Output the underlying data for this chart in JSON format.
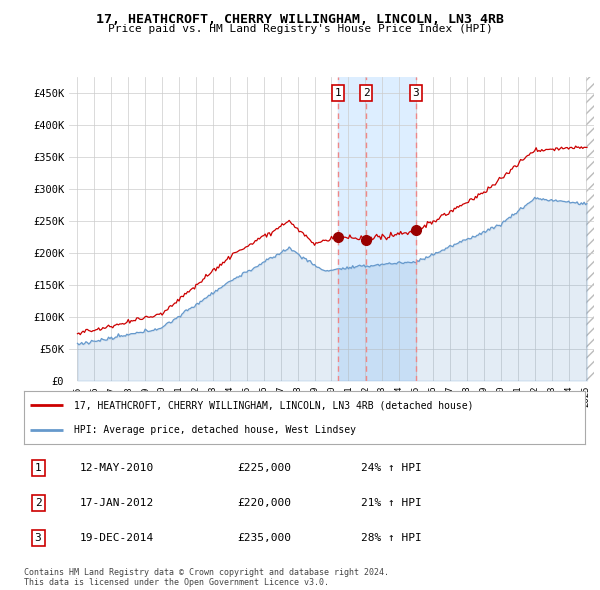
{
  "title": "17, HEATHCROFT, CHERRY WILLINGHAM, LINCOLN, LN3 4RB",
  "subtitle": "Price paid vs. HM Land Registry's House Price Index (HPI)",
  "legend_red": "17, HEATHCROFT, CHERRY WILLINGHAM, LINCOLN, LN3 4RB (detached house)",
  "legend_blue": "HPI: Average price, detached house, West Lindsey",
  "transactions": [
    {
      "num": 1,
      "date": "12-MAY-2010",
      "price": "£225,000",
      "hpi": "24% ↑ HPI",
      "year": 2010.37
    },
    {
      "num": 2,
      "date": "17-JAN-2012",
      "price": "£220,000",
      "hpi": "21% ↑ HPI",
      "year": 2012.05
    },
    {
      "num": 3,
      "date": "19-DEC-2014",
      "price": "£235,000",
      "hpi": "28% ↑ HPI",
      "year": 2014.97
    }
  ],
  "transaction_prices": [
    225000,
    220000,
    235000
  ],
  "footer": "Contains HM Land Registry data © Crown copyright and database right 2024.\nThis data is licensed under the Open Government Licence v3.0.",
  "ylim": [
    0,
    475000
  ],
  "yticks": [
    0,
    50000,
    100000,
    150000,
    200000,
    250000,
    300000,
    350000,
    400000,
    450000
  ],
  "ytick_labels": [
    "£0",
    "£50K",
    "£100K",
    "£150K",
    "£200K",
    "£250K",
    "£300K",
    "£350K",
    "£400K",
    "£450K"
  ],
  "red_color": "#cc0000",
  "blue_color": "#6699cc",
  "vline_color": "#ee8888",
  "shade_color": "#ddeeff",
  "hatch_color": "#cccccc",
  "plot_bg": "#ffffff",
  "fig_bg": "#ffffff",
  "grid_color": "#cccccc",
  "shade_x1": 2010.37,
  "shade_x2": 2014.97,
  "hatch_x": 2025.0,
  "xlim_left": 1994.5,
  "xlim_right": 2025.5
}
